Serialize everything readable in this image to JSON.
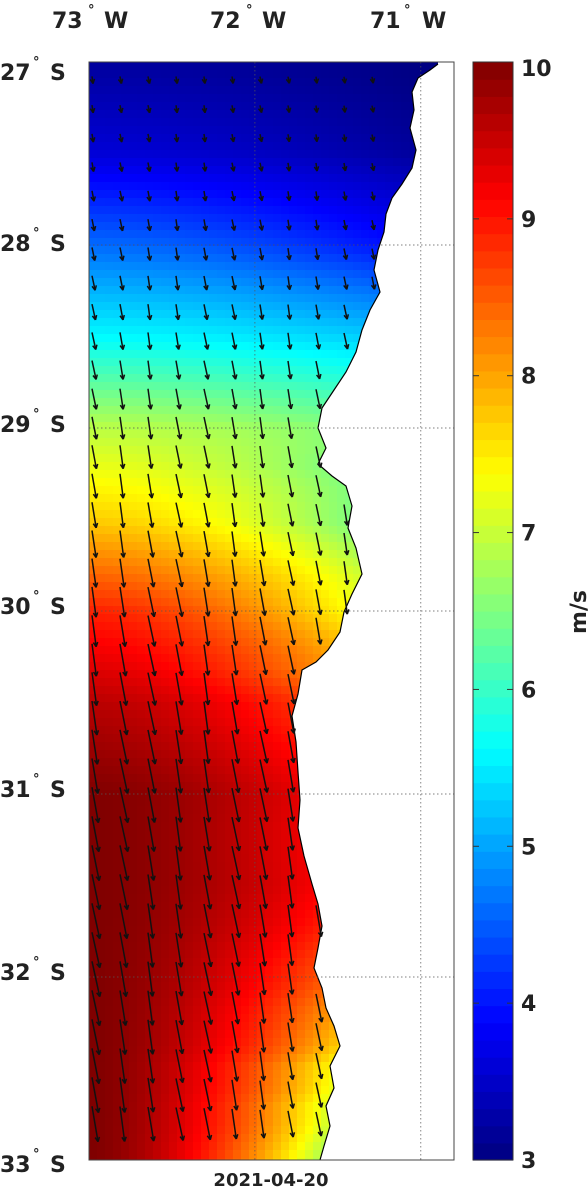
{
  "chart_data": {
    "type": "heatmap",
    "title": "",
    "date_label": "2021-04-20",
    "x_axis": {
      "ticks": [
        {
          "deg": "73",
          "hemi": "W"
        },
        {
          "deg": "72",
          "hemi": "W"
        },
        {
          "deg": "71",
          "hemi": "W"
        }
      ],
      "range_deg_w": [
        73.0,
        70.8
      ]
    },
    "y_axis": {
      "ticks": [
        {
          "deg": "27",
          "hemi": "S"
        },
        {
          "deg": "28",
          "hemi": "S"
        },
        {
          "deg": "29",
          "hemi": "S"
        },
        {
          "deg": "30",
          "hemi": "S"
        },
        {
          "deg": "31",
          "hemi": "S"
        },
        {
          "deg": "32",
          "hemi": "S"
        },
        {
          "deg": "33",
          "hemi": "S"
        }
      ],
      "range_deg_s": [
        27,
        33
      ]
    },
    "colorbar": {
      "label": "m/s",
      "min": 3,
      "max": 10,
      "ticks": [
        "3",
        "4",
        "5",
        "6",
        "7",
        "8",
        "9",
        "10"
      ],
      "colormap": "jet"
    },
    "grid": true,
    "variable": "wind speed with wind direction vectors",
    "speed_profile_by_latitude": [
      {
        "lat": 27.0,
        "offshore": 3.2,
        "nearshore": 3.0
      },
      {
        "lat": 27.5,
        "offshore": 3.6,
        "nearshore": 3.2
      },
      {
        "lat": 28.0,
        "offshore": 4.6,
        "nearshore": 4.0
      },
      {
        "lat": 28.5,
        "offshore": 5.6,
        "nearshore": 5.3
      },
      {
        "lat": 29.0,
        "offshore": 6.9,
        "nearshore": 6.6
      },
      {
        "lat": 29.5,
        "offshore": 7.7,
        "nearshore": 6.5
      },
      {
        "lat": 30.0,
        "offshore": 8.9,
        "nearshore": 7.4
      },
      {
        "lat": 30.5,
        "offshore": 9.6,
        "nearshore": 8.8
      },
      {
        "lat": 31.0,
        "offshore": 10.0,
        "nearshore": 9.3
      },
      {
        "lat": 31.5,
        "offshore": 10.0,
        "nearshore": 9.2
      },
      {
        "lat": 32.0,
        "offshore": 10.0,
        "nearshore": 8.6
      },
      {
        "lat": 32.5,
        "offshore": 10.0,
        "nearshore": 7.4
      },
      {
        "lat": 33.0,
        "offshore": 10.0,
        "nearshore": 6.8
      }
    ]
  }
}
